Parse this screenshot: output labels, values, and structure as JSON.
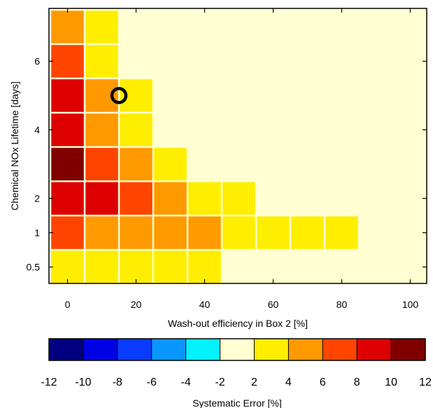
{
  "chart_data": {
    "type": "heatmap",
    "xlabel": "Wash-out efficiency in Box 2 [%]",
    "ylabel": "Chemical NOx Lifetime [days]",
    "x_categories": [
      0,
      10,
      20,
      30,
      40,
      50,
      60,
      70,
      80,
      90,
      100
    ],
    "y_categories": [
      0.5,
      1,
      2,
      3,
      4,
      5,
      6,
      7
    ],
    "x_ticks": [
      0,
      20,
      40,
      60,
      80,
      100
    ],
    "y_ticks": [
      {
        "value": 0.5,
        "label": "0.5"
      },
      {
        "value": 1,
        "label": "1"
      },
      {
        "value": 2,
        "label": "2"
      },
      {
        "value": 4,
        "label": "4"
      },
      {
        "value": 6,
        "label": "6"
      }
    ],
    "values_note": "rows listed bottom (0.5) to top (7); each value is the color-bin midpoint of the systematic error [%]",
    "z": [
      [
        3,
        3,
        3,
        3,
        3,
        1,
        1,
        1,
        1,
        1,
        1
      ],
      [
        7,
        5,
        5,
        5,
        5,
        3,
        3,
        3,
        3,
        1,
        1
      ],
      [
        9,
        9,
        7,
        5,
        3,
        3,
        1,
        1,
        1,
        1,
        1
      ],
      [
        11,
        7,
        5,
        3,
        1,
        1,
        1,
        1,
        1,
        1,
        1
      ],
      [
        9,
        5,
        3,
        1,
        1,
        1,
        1,
        1,
        1,
        1,
        1
      ],
      [
        9,
        5,
        3,
        1,
        1,
        1,
        1,
        1,
        1,
        1,
        1
      ],
      [
        7,
        3,
        1,
        1,
        1,
        1,
        1,
        1,
        1,
        1,
        1
      ],
      [
        5,
        3,
        1,
        1,
        1,
        1,
        1,
        1,
        1,
        1,
        1
      ]
    ],
    "marker": {
      "x": 15,
      "y": 5,
      "shape": "circle"
    },
    "colorbar": {
      "title": "Systematic Error [%]",
      "ticks": [
        -12,
        -10,
        -8,
        -6,
        -4,
        -2,
        2,
        4,
        6,
        8,
        10,
        12
      ],
      "bins": [
        {
          "from": -12,
          "to": -10,
          "color": "#000080"
        },
        {
          "from": -10,
          "to": -8,
          "color": "#0000e6"
        },
        {
          "from": -8,
          "to": -6,
          "color": "#0a3cff"
        },
        {
          "from": -6,
          "to": -4,
          "color": "#0a96ff"
        },
        {
          "from": -4,
          "to": -2,
          "color": "#00f2ff"
        },
        {
          "from": -2,
          "to": 2,
          "color": "#ffffd2"
        },
        {
          "from": 2,
          "to": 4,
          "color": "#ffee00"
        },
        {
          "from": 4,
          "to": 6,
          "color": "#ff9900"
        },
        {
          "from": 6,
          "to": 8,
          "color": "#ff4400"
        },
        {
          "from": 8,
          "to": 10,
          "color": "#dd0000"
        },
        {
          "from": 10,
          "to": 12,
          "color": "#800000"
        }
      ]
    }
  }
}
